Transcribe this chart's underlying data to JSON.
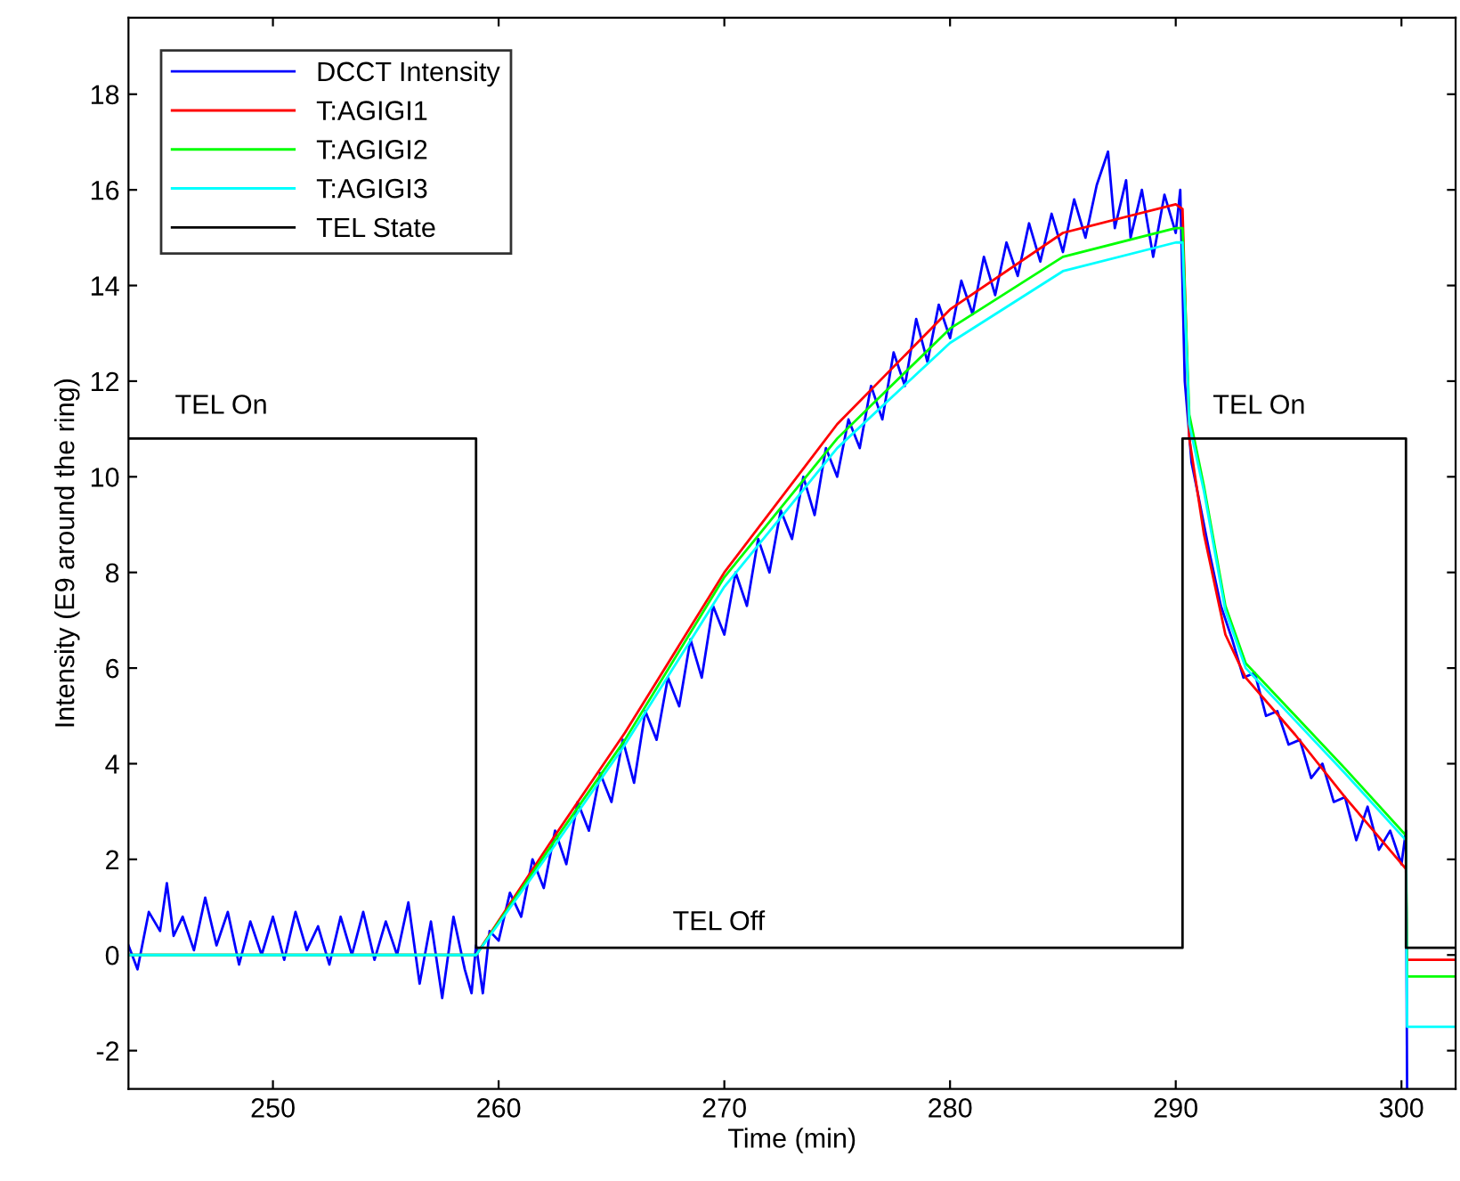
{
  "chart_data": {
    "type": "line",
    "xlabel": "Time (min)",
    "ylabel": "Intensity (E9 around the ring)",
    "xlim": [
      243.6,
      302.4
    ],
    "ylim": [
      -2.8,
      19.6
    ],
    "xticks": [
      250,
      260,
      270,
      280,
      290,
      300
    ],
    "yticks": [
      -2,
      0,
      2,
      4,
      6,
      8,
      10,
      12,
      14,
      16,
      18
    ],
    "grid": false,
    "legend": "top left",
    "marker": "none",
    "line_style": "solid",
    "annotations": [
      "TEL On",
      "TEL Off",
      "TEL On"
    ],
    "series": [
      {
        "name": "DCCT Intensity",
        "color": "#0000ff",
        "x": [
          243.6,
          244,
          244.5,
          245,
          245.3,
          245.6,
          246,
          246.5,
          247,
          247.5,
          248,
          248.5,
          249,
          249.5,
          250,
          250.5,
          251,
          251.5,
          252,
          252.5,
          253,
          253.5,
          254,
          254.5,
          255,
          255.5,
          256,
          256.5,
          257,
          257.5,
          258,
          258.5,
          258.8,
          259,
          259.3,
          259.6,
          260,
          260.5,
          261,
          261.5,
          262,
          262.5,
          263,
          263.5,
          264,
          264.5,
          265,
          265.5,
          266,
          266.5,
          267,
          267.5,
          268,
          268.5,
          269,
          269.5,
          270,
          270.5,
          271,
          271.5,
          272,
          272.5,
          273,
          273.5,
          274,
          274.5,
          275,
          275.5,
          276,
          276.5,
          277,
          277.5,
          278,
          278.5,
          279,
          279.5,
          280,
          280.5,
          281,
          281.5,
          282,
          282.5,
          283,
          283.5,
          284,
          284.5,
          285,
          285.5,
          286,
          286.5,
          287,
          287.3,
          287.8,
          288,
          288.5,
          289,
          289.5,
          290,
          290.2,
          290.4,
          290.7,
          291,
          291.5,
          292,
          292.5,
          293,
          293.5,
          294,
          294.5,
          295,
          295.5,
          296,
          296.5,
          297,
          297.5,
          298,
          298.5,
          299,
          299.5,
          300,
          300.2,
          300.25
        ],
        "values": [
          0.2,
          -0.3,
          0.9,
          0.5,
          1.5,
          0.4,
          0.8,
          0.1,
          1.2,
          0.2,
          0.9,
          -0.2,
          0.7,
          0.0,
          0.8,
          -0.1,
          0.9,
          0.1,
          0.6,
          -0.2,
          0.8,
          0.0,
          0.9,
          -0.1,
          0.7,
          0.0,
          1.1,
          -0.6,
          0.7,
          -0.9,
          0.8,
          -0.3,
          -0.8,
          0.2,
          -0.8,
          0.5,
          0.3,
          1.3,
          0.8,
          2.0,
          1.4,
          2.6,
          1.9,
          3.2,
          2.6,
          3.8,
          3.2,
          4.5,
          3.6,
          5.1,
          4.5,
          5.8,
          5.2,
          6.6,
          5.8,
          7.3,
          6.7,
          8.0,
          7.3,
          8.7,
          8.0,
          9.3,
          8.7,
          10.0,
          9.2,
          10.6,
          10.0,
          11.2,
          10.6,
          11.9,
          11.2,
          12.6,
          11.9,
          13.3,
          12.4,
          13.6,
          12.9,
          14.1,
          13.4,
          14.6,
          13.8,
          14.9,
          14.2,
          15.3,
          14.5,
          15.5,
          14.7,
          15.8,
          15.0,
          16.1,
          16.8,
          15.2,
          16.2,
          15.0,
          16.0,
          14.6,
          15.9,
          15.1,
          16.0,
          12.0,
          10.3,
          9.6,
          8.4,
          7.3,
          6.6,
          5.8,
          5.9,
          5.0,
          5.1,
          4.4,
          4.5,
          3.7,
          4.0,
          3.2,
          3.3,
          2.4,
          3.1,
          2.2,
          2.6,
          1.9,
          2.6,
          -2.8
        ]
      },
      {
        "name": "T:AGIGI1",
        "color": "#ff0000",
        "x": [
          243.6,
          259,
          262.5,
          265.6,
          270,
          275,
          280,
          285,
          290,
          290.3,
          290.6,
          291.25,
          292.2,
          293.1,
          295.3,
          297.5,
          300.2,
          300.25,
          302.4
        ],
        "values": [
          0,
          0,
          2.5,
          4.65,
          8.0,
          11.1,
          13.5,
          15.1,
          15.7,
          15.6,
          10.8,
          8.8,
          6.7,
          5.8,
          4.6,
          3.3,
          1.8,
          -0.1,
          -0.1
        ]
      },
      {
        "name": "T:AGIGI2",
        "color": "#00ff00",
        "x": [
          243.6,
          259,
          262.5,
          265.6,
          270,
          275,
          280,
          285,
          290,
          290.3,
          290.6,
          291.25,
          292.2,
          293.1,
          295.3,
          297.5,
          300.2,
          300.25,
          302.4
        ],
        "values": [
          0,
          0,
          2.4,
          4.5,
          7.9,
          10.8,
          13.1,
          14.6,
          15.2,
          15.2,
          11.3,
          9.8,
          7.3,
          6.1,
          5.0,
          3.9,
          2.5,
          -0.45,
          -0.45
        ]
      },
      {
        "name": "T:AGIGI3",
        "color": "#00ffff",
        "x": [
          243.6,
          259,
          262.5,
          265.6,
          270,
          275,
          280,
          285,
          290,
          290.3,
          290.6,
          291.25,
          292.2,
          293.1,
          295.3,
          297.5,
          300.2,
          300.25,
          302.4
        ],
        "values": [
          0,
          0,
          2.3,
          4.4,
          7.7,
          10.6,
          12.8,
          14.3,
          14.9,
          14.9,
          11.1,
          9.7,
          7.2,
          6.0,
          4.9,
          3.8,
          2.4,
          -1.5,
          -1.5
        ]
      },
      {
        "name": "TEL State",
        "color": "#000000",
        "x": [
          243.6,
          259,
          259,
          290.3,
          290.3,
          300.2,
          300.2,
          302.4
        ],
        "values": [
          10.8,
          10.8,
          0.15,
          0.15,
          10.8,
          10.8,
          0.15,
          0.15
        ]
      }
    ]
  }
}
